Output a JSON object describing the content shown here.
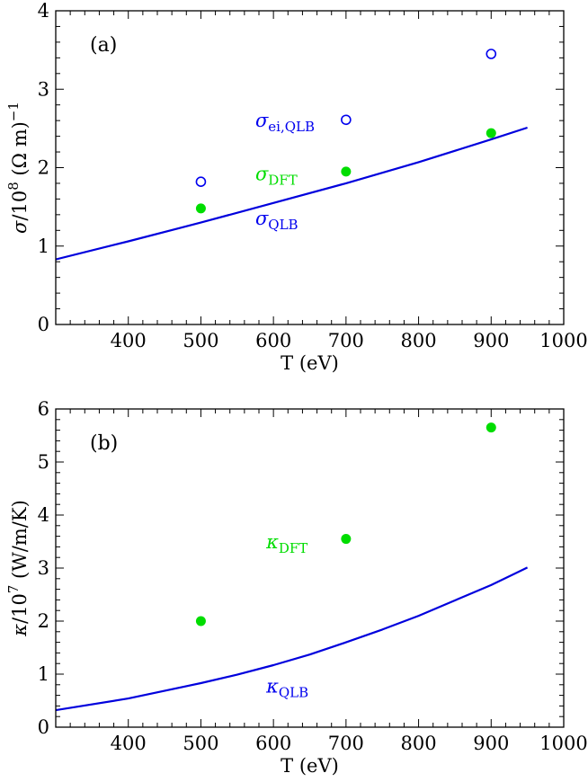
{
  "chart_data": [
    {
      "type": "scatter",
      "panel_label": "(a)",
      "xlabel": "T (eV)",
      "ylabel": {
        "sym": "σ",
        "text1": "/10",
        "exp1": "8",
        "text2": " (Ω m)",
        "exp2": "−1"
      },
      "xlim": [
        300,
        1000
      ],
      "ylim": [
        0,
        4
      ],
      "xticks": [
        400,
        500,
        600,
        700,
        800,
        900,
        1000
      ],
      "yticks": [
        0,
        1,
        2,
        3,
        4
      ],
      "grid": false,
      "series": [
        {
          "name": "σ_ei,QLB",
          "kind": "scatter-open",
          "color": "#0000ee",
          "x": [
            500,
            700,
            900
          ],
          "y": [
            1.82,
            2.61,
            3.45
          ]
        },
        {
          "name": "σ_DFT",
          "kind": "scatter-filled",
          "color": "#00dd00",
          "x": [
            500,
            700,
            900
          ],
          "y": [
            1.48,
            1.95,
            2.44
          ]
        },
        {
          "name": "σ_QLB",
          "kind": "line",
          "color": "#0000dd",
          "x": [
            300,
            400,
            500,
            600,
            700,
            800,
            900,
            950
          ],
          "y": [
            0.83,
            1.06,
            1.3,
            1.55,
            1.8,
            2.07,
            2.36,
            2.51
          ]
        }
      ],
      "annotations": [
        {
          "sym": "σ",
          "sub": "ei,QLB",
          "color": "#0000ee",
          "x": 575,
          "y": 2.52
        },
        {
          "sym": "σ",
          "sub": "DFT",
          "color": "#00dd00",
          "x": 575,
          "y": 1.84
        },
        {
          "sym": "σ",
          "sub": "QLB",
          "color": "#0000ee",
          "x": 575,
          "y": 1.27
        }
      ]
    },
    {
      "type": "scatter",
      "panel_label": "(b)",
      "xlabel": "T (eV)",
      "ylabel": {
        "sym": "κ",
        "text1": "/10",
        "exp1": "7",
        "text2": " (W/m/K)",
        "exp2": ""
      },
      "xlim": [
        300,
        1000
      ],
      "ylim": [
        0,
        6
      ],
      "xticks": [
        400,
        500,
        600,
        700,
        800,
        900,
        1000
      ],
      "yticks": [
        0,
        1,
        2,
        3,
        4,
        5,
        6
      ],
      "grid": false,
      "series": [
        {
          "name": "κ_DFT",
          "kind": "scatter-filled",
          "color": "#00dd00",
          "x": [
            500,
            700,
            900
          ],
          "y": [
            2.0,
            3.55,
            5.65
          ]
        },
        {
          "name": "κ_QLB",
          "kind": "line",
          "color": "#0000dd",
          "x": [
            300,
            400,
            500,
            550,
            600,
            650,
            700,
            750,
            800,
            850,
            900,
            950
          ],
          "y": [
            0.32,
            0.54,
            0.83,
            0.99,
            1.17,
            1.37,
            1.6,
            1.84,
            2.1,
            2.39,
            2.68,
            3.01
          ]
        }
      ],
      "annotations": [
        {
          "sym": "κ",
          "sub": "DFT",
          "color": "#00dd00",
          "x": 590,
          "y": 3.37
        },
        {
          "sym": "κ",
          "sub": "QLB",
          "color": "#0000ee",
          "x": 590,
          "y": 0.65
        }
      ]
    }
  ]
}
